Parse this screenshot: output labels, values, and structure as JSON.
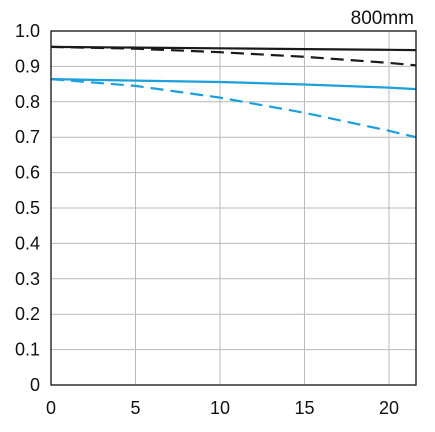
{
  "chart_data": {
    "type": "line",
    "title": "800mm",
    "xlabel": "",
    "ylabel": "",
    "xlim": [
      0,
      21.6
    ],
    "ylim": [
      0,
      1.0
    ],
    "x_ticks": [
      0,
      5,
      10,
      15,
      20
    ],
    "x_tick_labels": [
      "0",
      "5",
      "10",
      "15",
      "20"
    ],
    "y_ticks": [
      0,
      0.1,
      0.2,
      0.3,
      0.4,
      0.5,
      0.6,
      0.7,
      0.8,
      0.9,
      1.0
    ],
    "y_tick_labels": [
      "0",
      "0.1",
      "0.2",
      "0.3",
      "0.4",
      "0.5",
      "0.6",
      "0.7",
      "0.8",
      "0.9",
      "1.0"
    ],
    "grid": true,
    "series": [
      {
        "color": "#1a1a1a",
        "dash": false,
        "x": [
          0,
          5,
          10,
          15,
          20,
          21.6
        ],
        "y": [
          0.955,
          0.953,
          0.951,
          0.949,
          0.947,
          0.946
        ]
      },
      {
        "color": "#1a1a1a",
        "dash": true,
        "x": [
          0,
          5,
          10,
          15,
          20,
          21.6
        ],
        "y": [
          0.955,
          0.95,
          0.94,
          0.927,
          0.91,
          0.903
        ]
      },
      {
        "color": "#1aa0dc",
        "dash": false,
        "x": [
          0,
          5,
          10,
          15,
          20,
          21.6
        ],
        "y": [
          0.864,
          0.86,
          0.856,
          0.849,
          0.84,
          0.836
        ]
      },
      {
        "color": "#1aa0dc",
        "dash": true,
        "x": [
          0,
          5,
          10,
          15,
          20,
          21.6
        ],
        "y": [
          0.864,
          0.845,
          0.812,
          0.769,
          0.718,
          0.7
        ]
      }
    ]
  }
}
